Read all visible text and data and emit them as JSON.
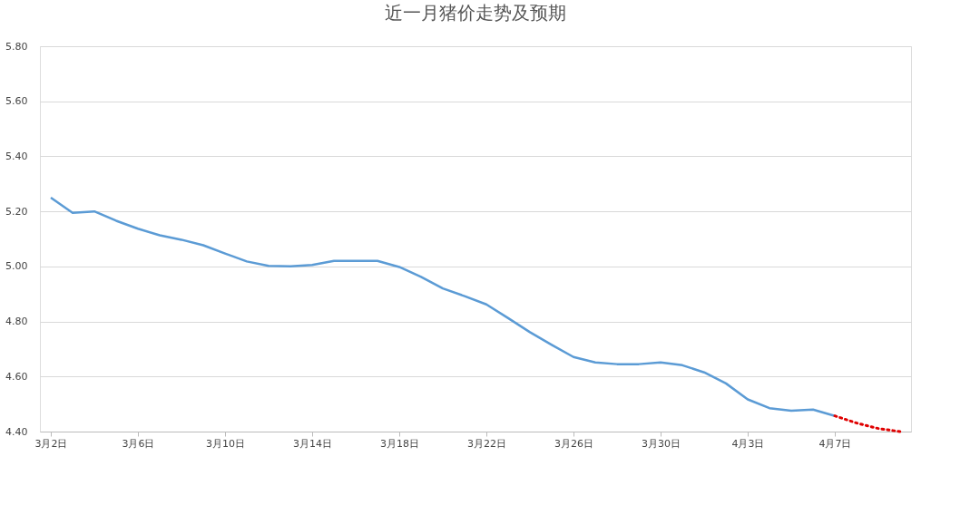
{
  "chart_data": {
    "type": "line",
    "title": "近一月猪价走势及预期",
    "categories": [
      "3月2日",
      null,
      null,
      null,
      "3月6日",
      null,
      null,
      null,
      "3月10日",
      null,
      null,
      null,
      "3月14日",
      null,
      null,
      null,
      "3月18日",
      null,
      null,
      null,
      "3月22日",
      null,
      null,
      null,
      "3月26日",
      null,
      null,
      null,
      "3月30日",
      null,
      null,
      null,
      "4月3日",
      null,
      null,
      null,
      "4月7日",
      null,
      null,
      null
    ],
    "series": [
      {
        "color": "#5b9bd5",
        "line_style": "solid",
        "values": [
          5.25,
          5.195,
          5.2,
          5.166,
          5.137,
          5.113,
          5.097,
          5.077,
          5.047,
          5.018,
          5.002,
          5.0,
          5.005,
          5.02,
          5.02,
          5.02,
          4.998,
          4.962,
          4.92,
          4.892,
          4.862,
          4.812,
          4.761,
          4.715,
          4.671,
          4.651,
          4.645,
          4.645,
          4.651,
          4.641,
          4.615,
          4.575,
          4.517,
          4.485,
          4.476,
          4.48,
          4.457,
          null,
          null,
          null
        ]
      },
      {
        "color": "#e00000",
        "line_style": "dotted",
        "values": [
          null,
          null,
          null,
          null,
          null,
          null,
          null,
          null,
          null,
          null,
          null,
          null,
          null,
          null,
          null,
          null,
          null,
          null,
          null,
          null,
          null,
          null,
          null,
          null,
          null,
          null,
          null,
          null,
          null,
          null,
          null,
          null,
          null,
          null,
          null,
          null,
          4.457,
          4.431,
          4.411,
          4.4
        ]
      }
    ],
    "ylim": [
      4.4,
      5.8
    ],
    "yticks": [
      {
        "value": 4.4,
        "label": "4.40"
      },
      {
        "value": 4.6,
        "label": "4.60"
      },
      {
        "value": 4.8,
        "label": "4.80"
      },
      {
        "value": 5.0,
        "label": "5.00"
      },
      {
        "value": 5.2,
        "label": "5.20"
      },
      {
        "value": 5.4,
        "label": "5.40"
      },
      {
        "value": 5.6,
        "label": "5.60"
      },
      {
        "value": 5.8,
        "label": "5.80"
      }
    ],
    "grid": "y"
  }
}
